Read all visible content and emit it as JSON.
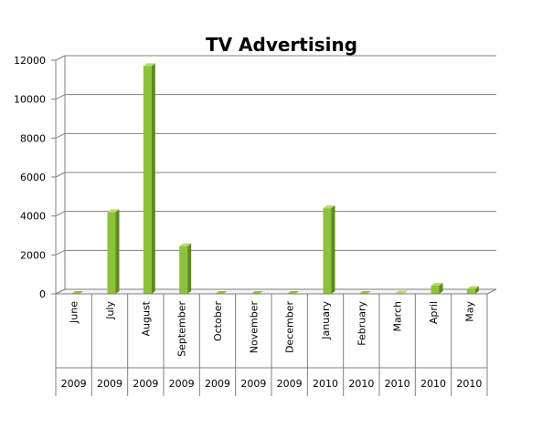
{
  "chart_data": {
    "type": "bar",
    "title": "TV Advertising",
    "categories": [
      "June",
      "July",
      "August",
      "September",
      "October",
      "November",
      "December",
      "January",
      "February",
      "March",
      "April",
      "May"
    ],
    "years": [
      "2009",
      "2009",
      "2009",
      "2009",
      "2009",
      "2009",
      "2009",
      "2010",
      "2010",
      "2010",
      "2010",
      "2010"
    ],
    "values": [
      0,
      4200,
      11700,
      2450,
      0,
      0,
      0,
      4400,
      0,
      20,
      420,
      260
    ],
    "ylim": [
      0,
      12000
    ],
    "yticks": [
      "0",
      "2000",
      "4000",
      "6000",
      "8000",
      "10000",
      "12000"
    ],
    "ytick_values": [
      0,
      2000,
      4000,
      6000,
      8000,
      10000,
      12000
    ],
    "grid": true,
    "legend": "none",
    "colors": {
      "bar_front": "#8dc33a",
      "bar_side": "#5f8a1f",
      "bar_top": "#b4dc6a",
      "grid": "#808080",
      "axis": "#808080",
      "text": "#000000"
    }
  }
}
